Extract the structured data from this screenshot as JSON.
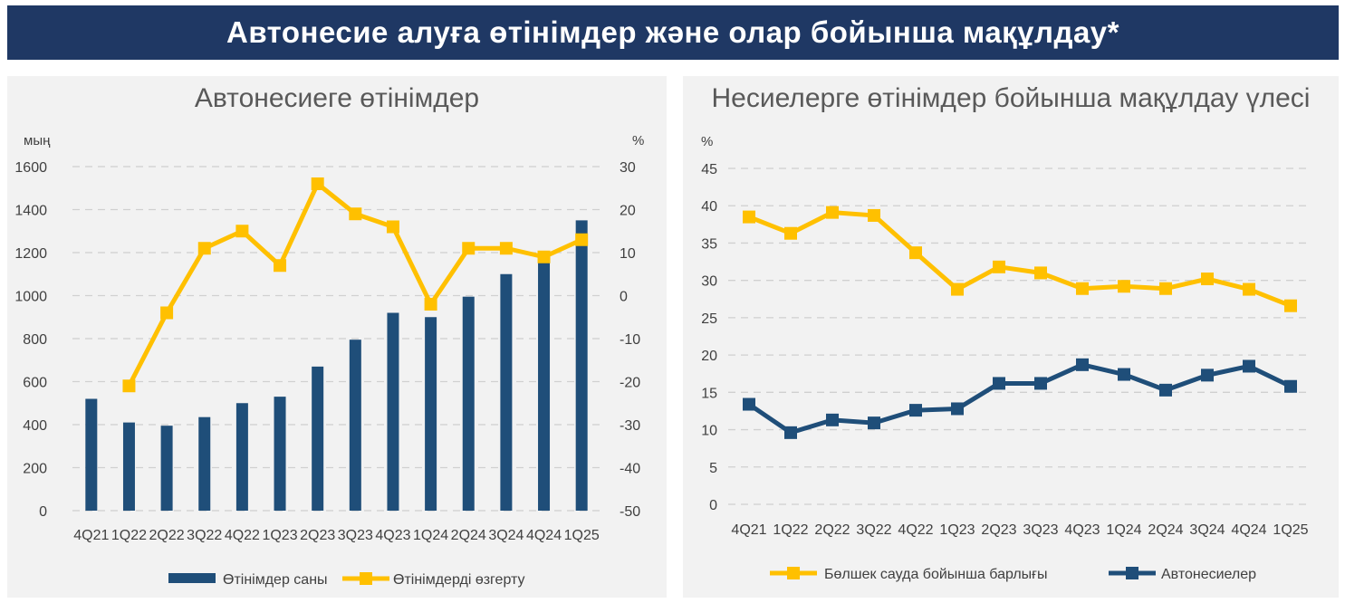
{
  "header": {
    "title": "Автонесие алуға өтінімдер және олар бойынша мақұлдау*"
  },
  "colors": {
    "navy": "#1f4e79",
    "gold": "#ffc000",
    "banner": "#1f3864",
    "grid": "#d0d0d0"
  },
  "chart_data": [
    {
      "type": "bar",
      "title": "Автонесиеге өтінімдер",
      "categories": [
        "4Q21",
        "1Q22",
        "2Q22",
        "3Q22",
        "4Q22",
        "1Q23",
        "2Q23",
        "3Q23",
        "4Q23",
        "1Q24",
        "2Q24",
        "3Q24",
        "4Q24",
        "1Q25"
      ],
      "y_unit": "мың",
      "y2_unit": "%",
      "ylim": [
        0,
        1600
      ],
      "y2lim": [
        -50,
        30
      ],
      "yticks": [
        "1600",
        "1400",
        "1200",
        "1000",
        "800",
        "600",
        "400",
        "200",
        "0"
      ],
      "y2ticks": [
        "30",
        "20",
        "10",
        "0",
        "-10",
        "-20",
        "-30",
        "-40",
        "-50"
      ],
      "grid": true,
      "legend_position": "bottom",
      "series": [
        {
          "name": "Өтінімдер саны",
          "type": "bar",
          "axis": "left",
          "values": [
            520,
            410,
            395,
            435,
            500,
            530,
            670,
            795,
            920,
            900,
            995,
            1100,
            1170,
            1350
          ]
        },
        {
          "name": "Өтінімдерді өзгерту",
          "type": "line",
          "axis": "right",
          "values": [
            null,
            -21,
            -4,
            11,
            15,
            7,
            26,
            19,
            16,
            -2,
            11,
            11,
            9,
            13
          ]
        }
      ]
    },
    {
      "type": "line",
      "title": "Несиелерге өтінімдер бойынша мақұлдау үлесі",
      "categories": [
        "4Q21",
        "1Q22",
        "2Q22",
        "3Q22",
        "4Q22",
        "1Q23",
        "2Q23",
        "3Q23",
        "4Q23",
        "1Q24",
        "2Q24",
        "3Q24",
        "4Q24",
        "1Q25"
      ],
      "y_unit": "%",
      "ylim": [
        0,
        45
      ],
      "yticks": [
        "45",
        "40",
        "35",
        "30",
        "25",
        "20",
        "15",
        "10",
        "5",
        "0"
      ],
      "grid": true,
      "legend_position": "bottom",
      "series": [
        {
          "name": "Бөлшек сауда бойынша барлығы",
          "values": [
            38.5,
            36.3,
            39.1,
            38.7,
            33.7,
            28.8,
            31.8,
            31.0,
            28.9,
            29.2,
            28.9,
            30.2,
            28.8,
            26.6
          ]
        },
        {
          "name": "Автонесиелер",
          "values": [
            13.4,
            9.6,
            11.3,
            10.9,
            12.6,
            12.8,
            16.2,
            16.2,
            18.7,
            17.4,
            15.3,
            17.3,
            18.5,
            15.8
          ]
        }
      ]
    }
  ]
}
